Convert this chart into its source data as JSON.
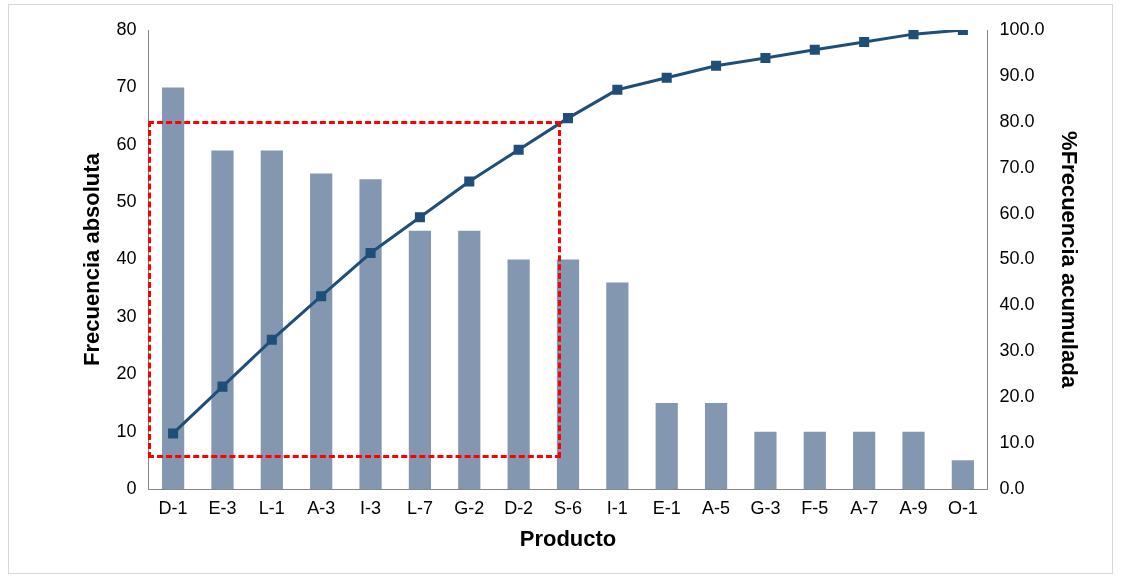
{
  "chart_data": {
    "type": "bar",
    "xlabel": "Producto",
    "ylabel": "Frecuencia absoluta",
    "y2label": "%Frecuencia acumulada",
    "categories": [
      "D-1",
      "E-3",
      "L-1",
      "A-3",
      "I-3",
      "L-7",
      "G-2",
      "D-2",
      "S-6",
      "I-1",
      "E-1",
      "A-5",
      "G-3",
      "F-5",
      "A-7",
      "A-9",
      "O-1"
    ],
    "series": [
      {
        "color": "#8497b0",
        "values": [
          70,
          59,
          59,
          55,
          54,
          45,
          45,
          40,
          40,
          36,
          15,
          15,
          10,
          10,
          10,
          10,
          5
        ]
      },
      {
        "type": "line",
        "axis": "y2",
        "color": "#1f4e79",
        "marker": "square",
        "values": [
          12.1,
          22.3,
          32.5,
          42.0,
          51.4,
          59.2,
          67.0,
          73.9,
          80.8,
          87.0,
          89.6,
          92.2,
          93.9,
          95.7,
          97.4,
          99.1,
          100.0
        ]
      }
    ],
    "ylim": [
      0,
      80
    ],
    "yticks": [
      0,
      10,
      20,
      30,
      40,
      50,
      60,
      70,
      80
    ],
    "y2lim": [
      0,
      100
    ],
    "y2ticks": [
      {
        "value": 0,
        "label": "0.0"
      },
      {
        "value": 10,
        "label": "10.0"
      },
      {
        "value": 20,
        "label": "20.0"
      },
      {
        "value": 30,
        "label": "30.0"
      },
      {
        "value": 40,
        "label": "40.0"
      },
      {
        "value": 50,
        "label": "50.0"
      },
      {
        "value": 60,
        "label": "60.0"
      },
      {
        "value": 70,
        "label": "70.0"
      },
      {
        "value": 80,
        "label": "80.0"
      },
      {
        "value": 90,
        "label": "90.0"
      },
      {
        "value": 100,
        "label": "100.0"
      }
    ],
    "grid": false,
    "legend": false
  }
}
